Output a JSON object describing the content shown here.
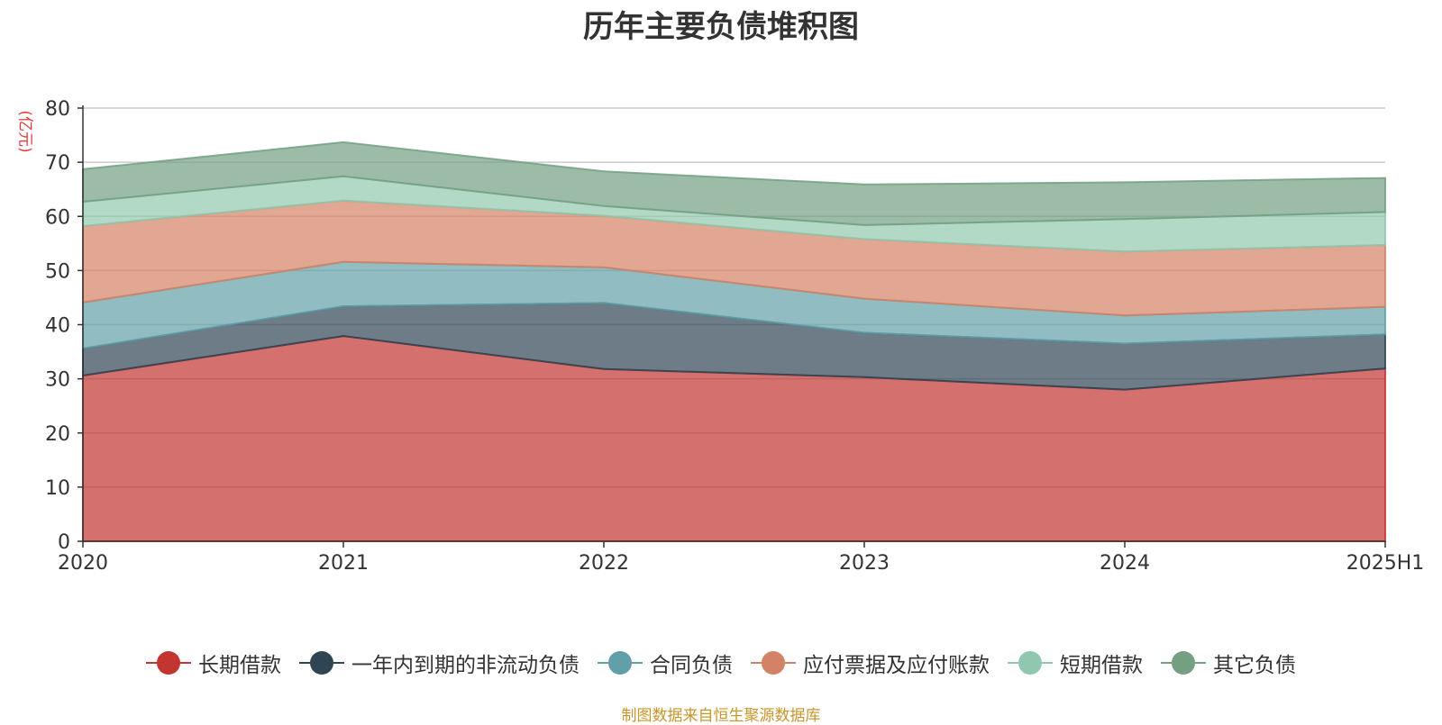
{
  "chart_data": {
    "type": "area",
    "stacked": true,
    "title": "历年主要负债堆积图",
    "unit_label": "(亿元)",
    "x": [
      "2020",
      "2021",
      "2022",
      "2023",
      "2024",
      "2025H1"
    ],
    "ylim": [
      0,
      80
    ],
    "yticks": [
      "0",
      "10",
      "20",
      "30",
      "40",
      "50",
      "60",
      "70",
      "80"
    ],
    "grid": true,
    "legend_position": "bottom",
    "series": [
      {
        "name": "长期借款",
        "color": "#c23531",
        "values": [
          30.6,
          37.9,
          31.8,
          30.3,
          28.0,
          31.9
        ]
      },
      {
        "name": "一年内到期的非流动负债",
        "color": "#2f4554",
        "values": [
          5.0,
          5.5,
          12.2,
          8.2,
          8.5,
          6.3
        ]
      },
      {
        "name": "合同负债",
        "color": "#61a0a8",
        "values": [
          8.5,
          8.2,
          6.6,
          6.3,
          5.2,
          5.1
        ]
      },
      {
        "name": "应付票据及应付账款",
        "color": "#d48265",
        "values": [
          14.1,
          11.3,
          9.5,
          11.0,
          11.8,
          11.4
        ]
      },
      {
        "name": "短期借款",
        "color": "#91c7ae",
        "values": [
          4.5,
          4.5,
          1.8,
          2.6,
          6.0,
          6.1
        ]
      },
      {
        "name": "其它负债",
        "color": "#749f83",
        "values": [
          6.0,
          6.3,
          6.4,
          7.5,
          6.8,
          6.3
        ]
      }
    ]
  },
  "footer": {
    "source": "制图数据来自恒生聚源数据库"
  }
}
